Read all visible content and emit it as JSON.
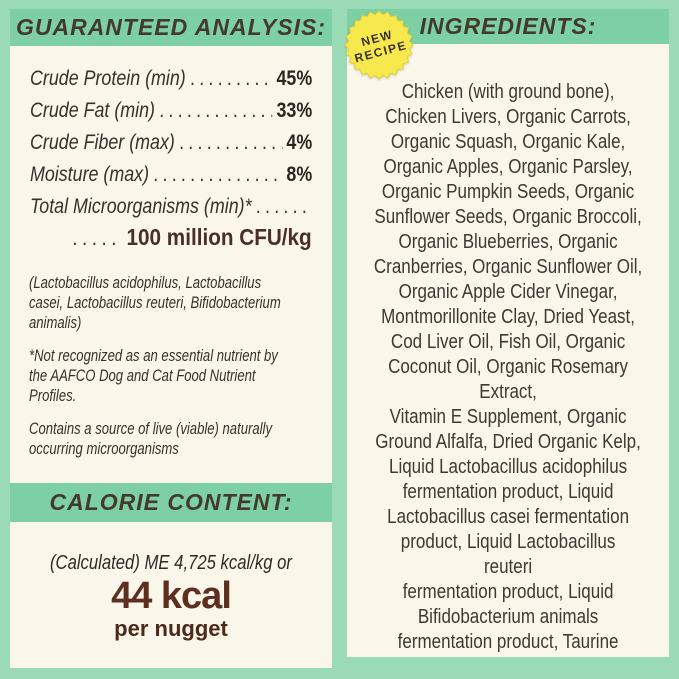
{
  "colors": {
    "background_mint": "#9adbb5",
    "band_green": "#7dd0a3",
    "panel_cream": "#faf6e9",
    "header_text": "#443a2c",
    "body_text": "#35322c",
    "value_text": "#2b2620",
    "cfu_value_text": "#4a2f26",
    "kcal_big_text": "#5e2e20",
    "per_nugget_text": "#4b2a1a",
    "ingredients_text": "#3d3933",
    "badge_yellow": "#f7e84e",
    "badge_edge": "#e4d13c",
    "badge_text": "#393128"
  },
  "left_panel": {
    "header": "GUARANTEED ANALYSIS:",
    "rows": [
      {
        "label": "Crude Protein (min)",
        "value": "45%"
      },
      {
        "label": "Crude Fat (min)",
        "value": "33%"
      },
      {
        "label": "Crude Fiber (max)",
        "value": "4%"
      },
      {
        "label": "Moisture (max)",
        "value": "8%"
      }
    ],
    "micro_label": "Total Microorganisms (min)*",
    "micro_value": "100 million CFU/kg",
    "paragraphs": [
      [
        "(Lactobacillus acidophilus, Lactobacillus",
        "casei, Lactobacillus reuteri, Bifidobacterium",
        "animalis)"
      ],
      [
        "*Not recognized as an essential nutrient by",
        "the AAFCO Dog and Cat Food Nutrient",
        "Profiles."
      ],
      [
        "Contains a source of live (viable) naturally",
        "occurring microorganisms"
      ]
    ],
    "calorie": {
      "header": "CALORIE CONTENT:",
      "line1": "(Calculated) ME 4,725 kcal/kg or",
      "big": "44 kcal",
      "sub": "per nugget"
    }
  },
  "right_panel": {
    "badge": {
      "line1": "NEW",
      "line2": "RECIPE"
    },
    "header": "INGREDIENTS:",
    "ingredients_lines": [
      "Chicken (with ground bone),",
      "Chicken Livers, Organic Carrots,",
      "Organic Squash, Organic Kale,",
      "Organic Apples, Organic Parsley,",
      "Organic Pumpkin Seeds, Organic",
      "Sunflower Seeds, Organic Broccoli,",
      "Organic Blueberries, Organic",
      "Cranberries, Organic Sunflower Oil,",
      "Organic Apple Cider Vinegar,",
      "Montmorillonite Clay, Dried Yeast,",
      "Cod Liver Oil, Fish Oil, Organic",
      "Coconut Oil, Organic Rosemary",
      "Extract,",
      "Vitamin E Supplement, Organic",
      "Ground Alfalfa, Dried Organic Kelp,",
      "Liquid Lactobacillus acidophilus",
      "fermentation product, Liquid",
      "Lactobacillus casei fermentation",
      "product, Liquid Lactobacillus",
      "reuteri",
      "fermentation product, Liquid",
      "Bifidobacterium animals",
      "fermentation product, Taurine"
    ]
  }
}
